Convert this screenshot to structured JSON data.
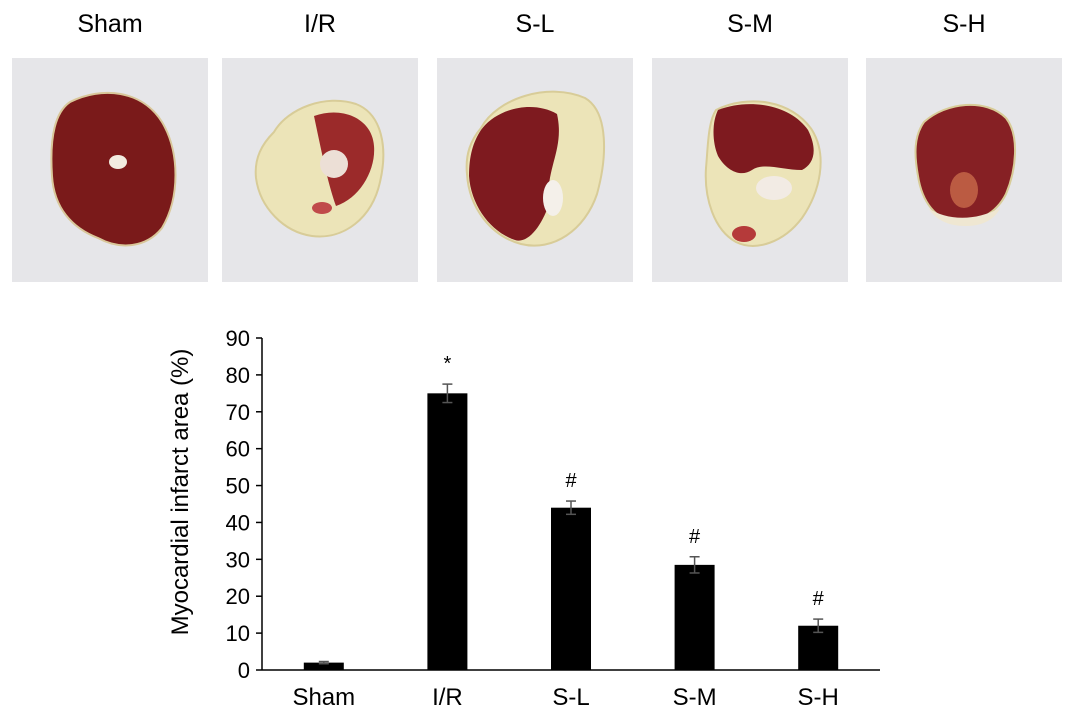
{
  "panels": [
    {
      "label": "Sham"
    },
    {
      "label": "I/R"
    },
    {
      "label": "S-L"
    },
    {
      "label": "S-M"
    },
    {
      "label": "S-H"
    }
  ],
  "colors": {
    "bar": "#000000",
    "axis": "#000000",
    "photo_background": "#e6e6e9",
    "viable_tissue": "#7a1a1a",
    "infarct_tissue": "#ece4b8"
  },
  "chart_data": {
    "type": "bar",
    "title": "",
    "xlabel": "",
    "ylabel": "Myocardial infarct area (%)",
    "ylim": [
      0,
      90
    ],
    "yticks": [
      "0",
      "10",
      "20",
      "30",
      "40",
      "50",
      "60",
      "70",
      "80",
      "90"
    ],
    "grid": false,
    "legend": "none",
    "categories": [
      "Sham",
      "I/R",
      "S-L",
      "S-M",
      "S-H"
    ],
    "values": [
      2,
      75,
      44,
      28.5,
      12
    ],
    "errors": [
      0.3,
      2.5,
      1.8,
      2.2,
      1.8
    ],
    "annotations": [
      "",
      "*",
      "#",
      "#",
      "#"
    ]
  }
}
